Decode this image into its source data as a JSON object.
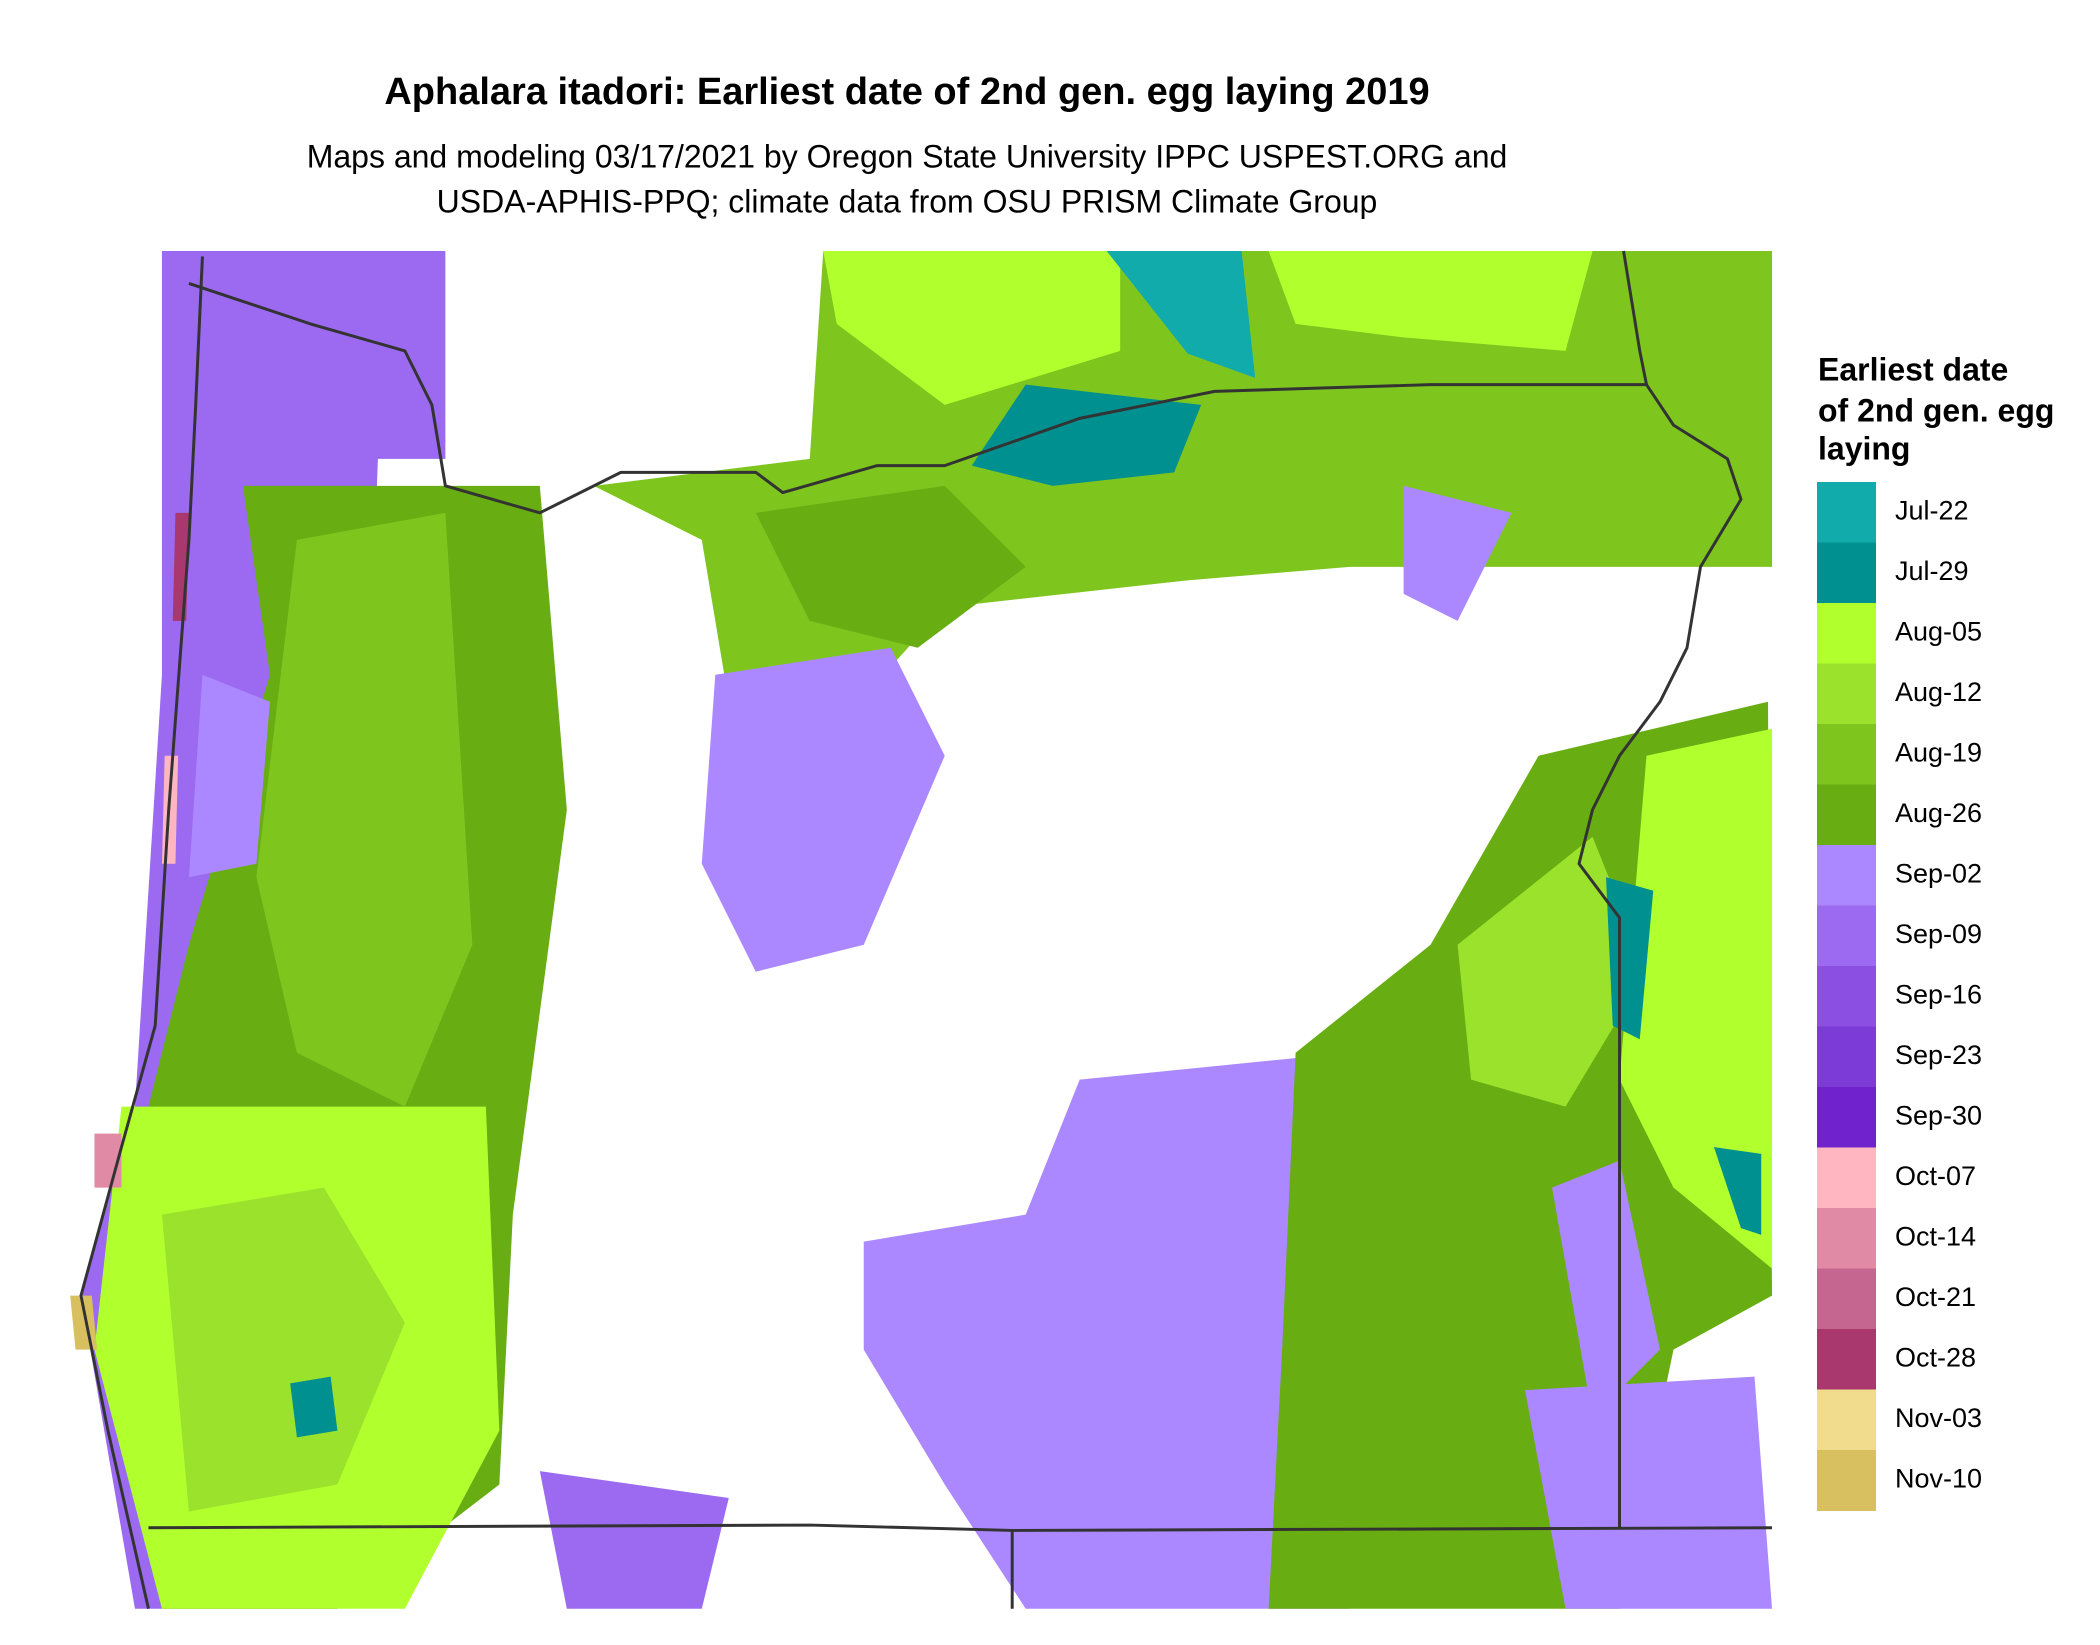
{
  "header": {
    "title": "Aphalara itadori: Earliest date of 2nd gen. egg laying 2019",
    "subtitle": [
      "Maps and modeling 03/17/2021 by Oregon State University IPPC USPEST.ORG and",
      "USDA-APHIS-PPQ; climate data from OSU PRISM Climate Group"
    ]
  },
  "legend": {
    "title": [
      "Earliest date",
      "of 2nd gen. egg",
      "laying"
    ],
    "items": [
      {
        "label": "Jul-22",
        "color": "#12abab"
      },
      {
        "label": "Jul-29",
        "color": "#009090"
      },
      {
        "label": "Aug-05",
        "color": "#b2ff2e"
      },
      {
        "label": "Aug-12",
        "color": "#9ae22c"
      },
      {
        "label": "Aug-19",
        "color": "#7ec61e"
      },
      {
        "label": "Aug-26",
        "color": "#68ad12"
      },
      {
        "label": "Sep-02",
        "color": "#ab88ff"
      },
      {
        "label": "Sep-09",
        "color": "#9b6af0"
      },
      {
        "label": "Sep-16",
        "color": "#8b50e2"
      },
      {
        "label": "Sep-23",
        "color": "#7c3ad6"
      },
      {
        "label": "Sep-30",
        "color": "#7022cc"
      },
      {
        "label": "Oct-07",
        "color": "#ffb6c1"
      },
      {
        "label": "Oct-14",
        "color": "#e08aa6"
      },
      {
        "label": "Oct-21",
        "color": "#c46690"
      },
      {
        "label": "Oct-28",
        "color": "#a8386e"
      },
      {
        "label": "Nov-03",
        "color": "#f0dc8c"
      },
      {
        "label": "Nov-10",
        "color": "#d8c060"
      }
    ]
  }
}
